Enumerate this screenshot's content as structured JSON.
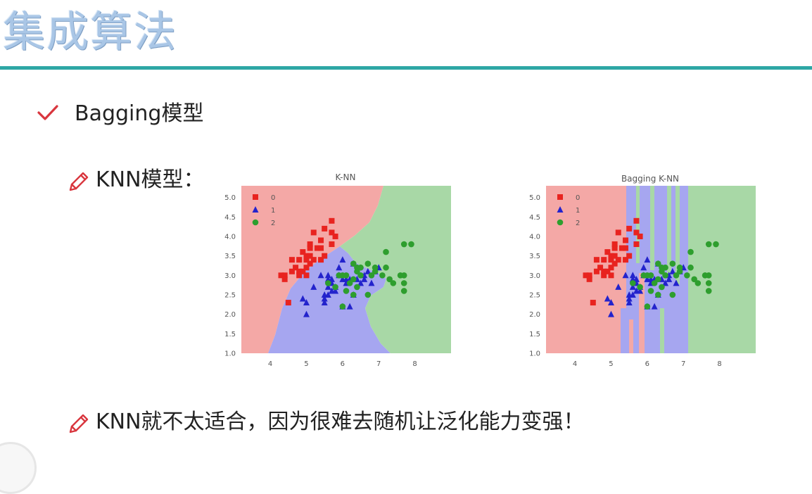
{
  "slide": {
    "title": "集成算法",
    "bullet1": "Bagging模型",
    "bullet2": "KNN模型：",
    "bullet3": "KNN就不太适合，因为很难去随机让泛化能力变强！"
  },
  "colors": {
    "rule": "#2ea7a5",
    "check": "#d9363e",
    "region0": "#f4a8a6",
    "region1": "#a6a6f0",
    "region2": "#a8d8a6",
    "class0": "#e8231f",
    "class1": "#2323cc",
    "class2": "#2e9e2e"
  },
  "icons": [
    "check-icon",
    "pencil-icon",
    "play-icon"
  ],
  "chart_data": [
    {
      "type": "scatter",
      "title": "K-NN",
      "xlim": [
        3.2,
        9.0
      ],
      "ylim": [
        1.0,
        5.3
      ],
      "xticks": [
        "4",
        "5",
        "6",
        "7",
        "8"
      ],
      "yticks": [
        "1.0",
        "1.5",
        "2.0",
        "2.5",
        "3.0",
        "3.5",
        "4.0",
        "4.5",
        "5.0"
      ],
      "legend": {
        "position": "top-left",
        "entries": [
          "0",
          "1",
          "2"
        ]
      },
      "series": [
        {
          "name": "0",
          "marker": "square",
          "points": [
            [
              4.4,
              3.0
            ],
            [
              4.5,
              2.3
            ],
            [
              4.6,
              3.1
            ],
            [
              4.7,
              3.2
            ],
            [
              4.8,
              3.0
            ],
            [
              4.8,
              3.4
            ],
            [
              4.9,
              3.1
            ],
            [
              4.9,
              3.6
            ],
            [
              5.0,
              3.0
            ],
            [
              5.0,
              3.4
            ],
            [
              5.0,
              3.5
            ],
            [
              5.1,
              3.3
            ],
            [
              5.1,
              3.5
            ],
            [
              5.1,
              3.8
            ],
            [
              5.2,
              3.4
            ],
            [
              5.2,
              4.1
            ],
            [
              5.3,
              3.7
            ],
            [
              5.4,
              3.4
            ],
            [
              5.4,
              3.9
            ],
            [
              5.5,
              3.5
            ],
            [
              5.5,
              4.2
            ],
            [
              5.7,
              3.8
            ],
            [
              5.7,
              4.4
            ],
            [
              5.8,
              4.0
            ],
            [
              4.3,
              3.0
            ],
            [
              5.0,
              3.2
            ],
            [
              5.4,
              3.7
            ],
            [
              4.6,
              3.4
            ],
            [
              4.4,
              2.9
            ],
            [
              5.1,
              3.7
            ],
            [
              5.7,
              4.1
            ],
            [
              4.8,
              3.1
            ]
          ]
        },
        {
          "name": "1",
          "marker": "triangle",
          "points": [
            [
              4.9,
              2.4
            ],
            [
              5.0,
              2.0
            ],
            [
              5.0,
              2.3
            ],
            [
              5.2,
              2.7
            ],
            [
              5.5,
              2.3
            ],
            [
              5.5,
              2.5
            ],
            [
              5.6,
              2.5
            ],
            [
              5.6,
              2.9
            ],
            [
              5.7,
              2.6
            ],
            [
              5.7,
              2.8
            ],
            [
              5.8,
              2.7
            ],
            [
              5.9,
              3.0
            ],
            [
              6.0,
              2.2
            ],
            [
              6.0,
              2.9
            ],
            [
              6.1,
              2.8
            ],
            [
              6.2,
              2.2
            ],
            [
              6.3,
              2.5
            ],
            [
              6.4,
              2.9
            ],
            [
              6.6,
              3.0
            ],
            [
              6.7,
              3.1
            ],
            [
              5.6,
              3.0
            ],
            [
              5.9,
              3.2
            ],
            [
              6.0,
              3.4
            ],
            [
              6.1,
              2.9
            ],
            [
              5.8,
              2.6
            ],
            [
              6.2,
              2.9
            ],
            [
              6.3,
              3.3
            ],
            [
              6.5,
              2.8
            ],
            [
              6.8,
              2.8
            ],
            [
              7.0,
              3.2
            ],
            [
              5.7,
              2.9
            ],
            [
              5.4,
              3.0
            ],
            [
              5.6,
              2.7
            ],
            [
              6.9,
              3.1
            ],
            [
              6.6,
              2.9
            ],
            [
              5.5,
              2.4
            ]
          ]
        },
        {
          "name": "2",
          "marker": "circle",
          "points": [
            [
              5.6,
              2.8
            ],
            [
              5.8,
              2.7
            ],
            [
              6.0,
              2.2
            ],
            [
              6.0,
              3.0
            ],
            [
              6.1,
              2.6
            ],
            [
              6.2,
              2.8
            ],
            [
              6.3,
              2.5
            ],
            [
              6.3,
              3.3
            ],
            [
              6.4,
              2.7
            ],
            [
              6.4,
              3.2
            ],
            [
              6.5,
              3.0
            ],
            [
              6.7,
              2.5
            ],
            [
              6.7,
              3.3
            ],
            [
              6.8,
              3.0
            ],
            [
              6.9,
              3.1
            ],
            [
              7.1,
              3.0
            ],
            [
              7.2,
              3.2
            ],
            [
              7.2,
              3.6
            ],
            [
              7.7,
              2.6
            ],
            [
              7.7,
              3.0
            ],
            [
              7.7,
              3.8
            ],
            [
              7.9,
              3.8
            ],
            [
              7.6,
              3.0
            ],
            [
              7.3,
              2.9
            ],
            [
              6.9,
              3.2
            ],
            [
              6.1,
              3.0
            ],
            [
              6.4,
              3.1
            ],
            [
              7.4,
              2.8
            ],
            [
              6.3,
              2.9
            ],
            [
              5.9,
              3.0
            ],
            [
              7.7,
              2.8
            ],
            [
              6.5,
              3.2
            ]
          ]
        }
      ]
    },
    {
      "type": "scatter",
      "title": "Bagging K-NN",
      "xlim": [
        3.2,
        9.0
      ],
      "ylim": [
        1.0,
        5.3
      ],
      "xticks": [
        "4",
        "5",
        "6",
        "7",
        "8"
      ],
      "yticks": [
        "1.0",
        "1.5",
        "2.0",
        "2.5",
        "3.0",
        "3.5",
        "4.0",
        "4.5",
        "5.0"
      ],
      "legend": {
        "position": "top-left",
        "entries": [
          "0",
          "1",
          "2"
        ]
      },
      "series": [
        {
          "name": "0",
          "marker": "square",
          "points": [
            [
              4.4,
              3.0
            ],
            [
              4.5,
              2.3
            ],
            [
              4.6,
              3.1
            ],
            [
              4.7,
              3.2
            ],
            [
              4.8,
              3.0
            ],
            [
              4.8,
              3.4
            ],
            [
              4.9,
              3.1
            ],
            [
              4.9,
              3.6
            ],
            [
              5.0,
              3.0
            ],
            [
              5.0,
              3.4
            ],
            [
              5.0,
              3.5
            ],
            [
              5.1,
              3.3
            ],
            [
              5.1,
              3.5
            ],
            [
              5.1,
              3.8
            ],
            [
              5.2,
              3.4
            ],
            [
              5.2,
              4.1
            ],
            [
              5.3,
              3.7
            ],
            [
              5.4,
              3.4
            ],
            [
              5.4,
              3.9
            ],
            [
              5.5,
              3.5
            ],
            [
              5.5,
              4.2
            ],
            [
              5.7,
              3.8
            ],
            [
              5.7,
              4.4
            ],
            [
              5.8,
              4.0
            ],
            [
              4.3,
              3.0
            ],
            [
              5.0,
              3.2
            ],
            [
              5.4,
              3.7
            ],
            [
              4.6,
              3.4
            ],
            [
              4.4,
              2.9
            ],
            [
              5.1,
              3.7
            ],
            [
              5.7,
              4.1
            ],
            [
              4.8,
              3.1
            ]
          ]
        },
        {
          "name": "1",
          "marker": "triangle",
          "points": [
            [
              4.9,
              2.4
            ],
            [
              5.0,
              2.0
            ],
            [
              5.0,
              2.3
            ],
            [
              5.2,
              2.7
            ],
            [
              5.5,
              2.3
            ],
            [
              5.5,
              2.5
            ],
            [
              5.6,
              2.5
            ],
            [
              5.6,
              2.9
            ],
            [
              5.7,
              2.6
            ],
            [
              5.7,
              2.8
            ],
            [
              5.8,
              2.7
            ],
            [
              5.9,
              3.0
            ],
            [
              6.0,
              2.2
            ],
            [
              6.0,
              2.9
            ],
            [
              6.1,
              2.8
            ],
            [
              6.2,
              2.2
            ],
            [
              6.3,
              2.5
            ],
            [
              6.4,
              2.9
            ],
            [
              6.6,
              3.0
            ],
            [
              6.7,
              3.1
            ],
            [
              5.6,
              3.0
            ],
            [
              5.9,
              3.2
            ],
            [
              6.0,
              3.4
            ],
            [
              6.1,
              2.9
            ],
            [
              5.8,
              2.6
            ],
            [
              6.2,
              2.9
            ],
            [
              6.3,
              3.3
            ],
            [
              6.5,
              2.8
            ],
            [
              6.8,
              2.8
            ],
            [
              7.0,
              3.2
            ],
            [
              5.7,
              2.9
            ],
            [
              5.4,
              3.0
            ],
            [
              5.6,
              2.7
            ],
            [
              6.9,
              3.1
            ],
            [
              6.6,
              2.9
            ],
            [
              5.5,
              2.4
            ]
          ]
        },
        {
          "name": "2",
          "marker": "circle",
          "points": [
            [
              5.6,
              2.8
            ],
            [
              5.8,
              2.7
            ],
            [
              6.0,
              2.2
            ],
            [
              6.0,
              3.0
            ],
            [
              6.1,
              2.6
            ],
            [
              6.2,
              2.8
            ],
            [
              6.3,
              2.5
            ],
            [
              6.3,
              3.3
            ],
            [
              6.4,
              2.7
            ],
            [
              6.4,
              3.2
            ],
            [
              6.5,
              3.0
            ],
            [
              6.7,
              2.5
            ],
            [
              6.7,
              3.3
            ],
            [
              6.8,
              3.0
            ],
            [
              6.9,
              3.1
            ],
            [
              7.1,
              3.0
            ],
            [
              7.2,
              3.2
            ],
            [
              7.2,
              3.6
            ],
            [
              7.7,
              2.6
            ],
            [
              7.7,
              3.0
            ],
            [
              7.7,
              3.8
            ],
            [
              7.9,
              3.8
            ],
            [
              7.6,
              3.0
            ],
            [
              7.3,
              2.9
            ],
            [
              6.9,
              3.2
            ],
            [
              6.1,
              3.0
            ],
            [
              6.4,
              3.1
            ],
            [
              7.4,
              2.8
            ],
            [
              6.3,
              2.9
            ],
            [
              5.9,
              3.0
            ],
            [
              7.7,
              2.8
            ],
            [
              6.5,
              3.2
            ]
          ]
        }
      ]
    }
  ]
}
